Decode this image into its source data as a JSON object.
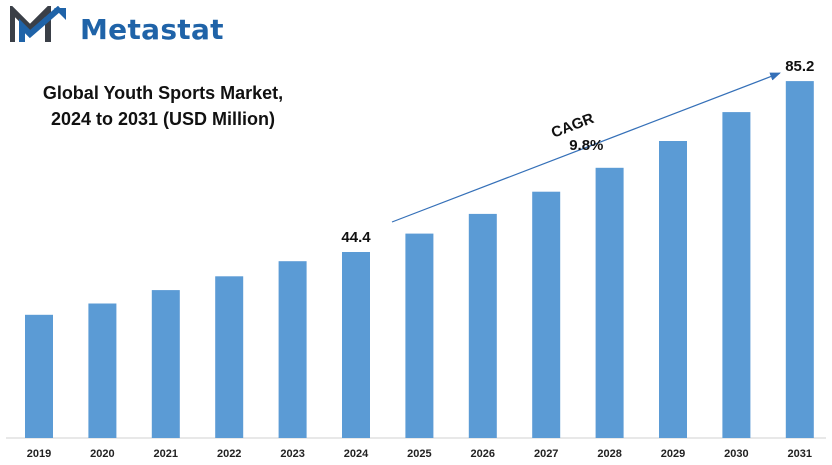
{
  "brand": {
    "name": "Metastat",
    "logo_icon": "metastat-m-logo-icon",
    "color": "#1f63a8"
  },
  "chart_data": {
    "type": "bar",
    "title_line1": "Global Youth Sports Market,",
    "title_line2": "2024 to 2031 (USD Million)",
    "xlabel": "",
    "ylabel": "",
    "categories": [
      "2019",
      "2020",
      "2021",
      "2022",
      "2023",
      "2024",
      "2025",
      "2026",
      "2027",
      "2028",
      "2029",
      "2030",
      "2031"
    ],
    "values": [
      29.4,
      32.1,
      35.3,
      38.6,
      42.2,
      44.4,
      48.8,
      53.5,
      58.8,
      64.5,
      70.9,
      77.8,
      85.2
    ],
    "data_labels": {
      "5": "44.4",
      "12": "85.2"
    },
    "bar_color": "#5b9bd5",
    "ylim": [
      0,
      95
    ],
    "grid": false,
    "annotation": {
      "label": "CAGR",
      "value": "9.8%",
      "from_category": "2024",
      "to_category": "2031"
    }
  }
}
